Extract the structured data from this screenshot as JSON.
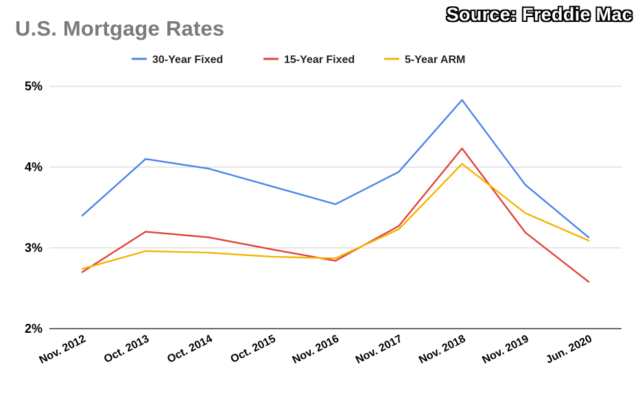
{
  "title": "U.S. Mortgage Rates",
  "source": "Source: Freddie Mac",
  "chart_data": {
    "type": "line",
    "title": "U.S. Mortgage Rates",
    "xlabel": "",
    "ylabel": "",
    "categories": [
      "Nov. 2012",
      "Oct. 2013",
      "Oct. 2014",
      "Oct. 2015",
      "Nov. 2016",
      "Nov. 2017",
      "Nov. 2018",
      "Nov. 2019",
      "Jun. 2020"
    ],
    "series": [
      {
        "name": "30-Year Fixed",
        "color": "#4a86e8",
        "values": [
          3.4,
          4.1,
          3.98,
          3.76,
          3.54,
          3.94,
          4.83,
          3.78,
          3.13
        ]
      },
      {
        "name": "15-Year Fixed",
        "color": "#e0443c",
        "values": [
          2.7,
          3.2,
          3.13,
          2.98,
          2.84,
          3.27,
          4.23,
          3.19,
          2.58
        ]
      },
      {
        "name": "5-Year ARM",
        "color": "#f4b400",
        "values": [
          2.74,
          2.96,
          2.94,
          2.89,
          2.87,
          3.23,
          4.04,
          3.43,
          3.09
        ]
      }
    ],
    "ylim": [
      2,
      5
    ],
    "yticks": [
      "2%",
      "3%",
      "4%",
      "5%"
    ],
    "ytick_values": [
      2,
      3,
      4,
      5
    ],
    "grid": true,
    "legend": "top-center"
  }
}
